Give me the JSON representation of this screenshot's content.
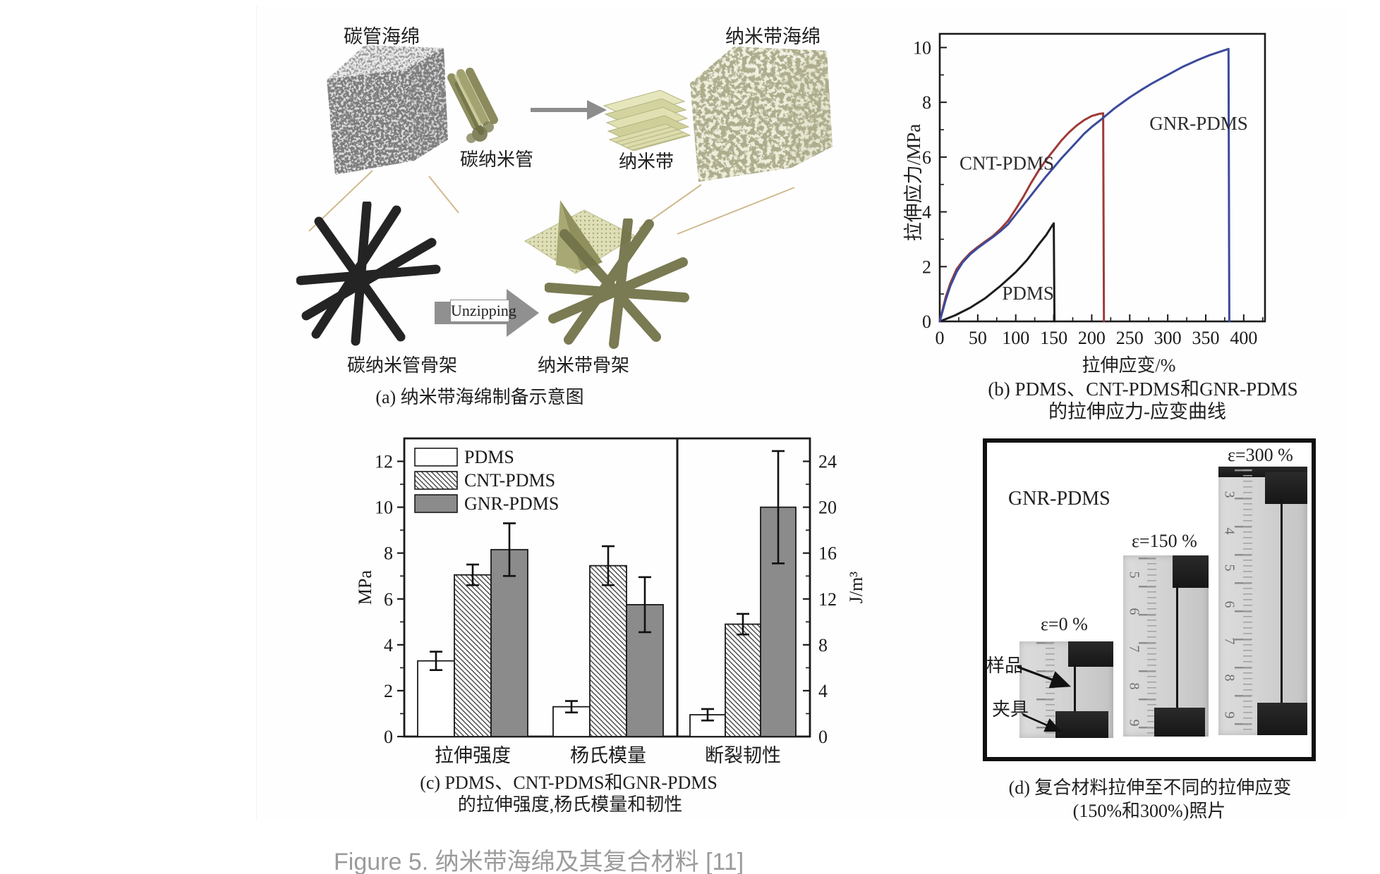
{
  "page": {
    "caption": "Figure 5. 纳米带海绵及其复合材料 [11]"
  },
  "panel_a": {
    "labels": {
      "cnt_sponge": "碳管海绵",
      "cnt": "碳纳米管",
      "nanoribbon": "纳米带",
      "gnr_sponge": "纳米带海绵",
      "unzipping": "Unzipping",
      "cnt_skeleton": "碳纳米管骨架",
      "gnr_skeleton": "纳米带骨架",
      "caption": "(a) 纳米带海绵制备示意图"
    }
  },
  "panel_b": {
    "caption_line1": "(b) PDMS、CNT-PDMS和GNR-PDMS",
    "caption_line2": "的拉伸应力-应变曲线"
  },
  "panel_c": {
    "caption_line1": "(c) PDMS、CNT-PDMS和GNR-PDMS",
    "caption_line2": "的拉伸强度,杨氏模量和韧性"
  },
  "panel_d": {
    "label": "GNR-PDMS",
    "sample_label": "样品",
    "clamp_label": "夹具",
    "caption_line1": "(d) 复合材料拉伸至不同的拉伸应变",
    "caption_line2": "(150%和300%)照片",
    "photos": [
      {
        "strain": "ε=0 %",
        "ruler_numbers": []
      },
      {
        "strain": "ε=150 %",
        "ruler_numbers": [
          "5",
          "6",
          "7",
          "8",
          "9"
        ]
      },
      {
        "strain": "ε=300 %",
        "ruler_numbers": [
          "3",
          "4",
          "5",
          "6",
          "7",
          "8",
          "9"
        ]
      }
    ]
  },
  "chart_data": [
    {
      "type": "line",
      "title": "拉伸应力-应变曲线",
      "xlabel": "拉伸应变/%",
      "ylabel": "拉伸应力/MPa",
      "xlim": [
        0,
        428
      ],
      "ylim": [
        0,
        10.5
      ],
      "xticks": [
        0,
        50,
        100,
        150,
        200,
        250,
        300,
        350,
        400
      ],
      "yticks": [
        0,
        2,
        4,
        6,
        8,
        10
      ],
      "grid": false,
      "series": [
        {
          "name": "PDMS",
          "color": "#1c1c1c",
          "points": [
            [
              0,
              0
            ],
            [
              20,
              0.22
            ],
            [
              40,
              0.5
            ],
            [
              60,
              0.85
            ],
            [
              80,
              1.3
            ],
            [
              100,
              1.8
            ],
            [
              115,
              2.25
            ],
            [
              130,
              2.8
            ],
            [
              140,
              3.15
            ],
            [
              148,
              3.5
            ],
            [
              150,
              3.58
            ],
            [
              151,
              0
            ]
          ]
        },
        {
          "name": "CNT-PDMS",
          "color": "#9e3b38",
          "points": [
            [
              0,
              0
            ],
            [
              4,
              0.45
            ],
            [
              8,
              0.9
            ],
            [
              14,
              1.4
            ],
            [
              22,
              1.9
            ],
            [
              30,
              2.2
            ],
            [
              40,
              2.5
            ],
            [
              50,
              2.72
            ],
            [
              60,
              2.92
            ],
            [
              70,
              3.12
            ],
            [
              80,
              3.38
            ],
            [
              90,
              3.68
            ],
            [
              100,
              4.1
            ],
            [
              110,
              4.55
            ],
            [
              120,
              5.05
            ],
            [
              130,
              5.5
            ],
            [
              140,
              5.9
            ],
            [
              150,
              6.25
            ],
            [
              160,
              6.6
            ],
            [
              170,
              6.9
            ],
            [
              180,
              7.15
            ],
            [
              190,
              7.35
            ],
            [
              200,
              7.5
            ],
            [
              210,
              7.58
            ],
            [
              215,
              7.6
            ],
            [
              216,
              0
            ]
          ]
        },
        {
          "name": "GNR-PDMS",
          "color": "#3b4a9c",
          "points": [
            [
              0,
              0
            ],
            [
              4,
              0.4
            ],
            [
              8,
              0.8
            ],
            [
              14,
              1.3
            ],
            [
              22,
              1.8
            ],
            [
              30,
              2.15
            ],
            [
              40,
              2.45
            ],
            [
              50,
              2.68
            ],
            [
              60,
              2.88
            ],
            [
              70,
              3.08
            ],
            [
              80,
              3.3
            ],
            [
              90,
              3.55
            ],
            [
              100,
              3.9
            ],
            [
              110,
              4.25
            ],
            [
              120,
              4.6
            ],
            [
              130,
              4.95
            ],
            [
              140,
              5.3
            ],
            [
              150,
              5.62
            ],
            [
              160,
              5.95
            ],
            [
              170,
              6.25
            ],
            [
              180,
              6.55
            ],
            [
              190,
              6.85
            ],
            [
              200,
              7.1
            ],
            [
              210,
              7.32
            ],
            [
              220,
              7.55
            ],
            [
              230,
              7.78
            ],
            [
              240,
              7.98
            ],
            [
              250,
              8.18
            ],
            [
              265,
              8.45
            ],
            [
              280,
              8.7
            ],
            [
              300,
              9.0
            ],
            [
              320,
              9.3
            ],
            [
              340,
              9.55
            ],
            [
              355,
              9.72
            ],
            [
              370,
              9.86
            ],
            [
              380,
              9.95
            ],
            [
              381,
              0
            ]
          ]
        }
      ],
      "labels_on_plot": [
        {
          "text": "CNT-PDMS",
          "x": 26,
          "y": 5.55
        },
        {
          "text": "GNR-PDMS",
          "x": 276,
          "y": 7.0
        },
        {
          "text": "PDMS",
          "x": 82,
          "y": 0.8
        }
      ]
    },
    {
      "type": "bar",
      "title": "拉伸强度、杨氏模量和韧性对比",
      "legend": [
        "PDMS",
        "CNT-PDMS",
        "GNR-PDMS"
      ],
      "series_fills": [
        "#ffffff",
        "hatch",
        "#8b8b8b"
      ],
      "left_axis": {
        "label": "MPa",
        "ticks": [
          0,
          2,
          4,
          6,
          8,
          10,
          12
        ],
        "max": 13.0
      },
      "right_axis": {
        "label": "J/m³",
        "ticks": [
          0,
          4,
          8,
          12,
          16,
          20,
          24
        ],
        "max": 26.0
      },
      "groups": [
        {
          "label": "拉伸强度",
          "axis": "left",
          "values": [
            3.3,
            7.05,
            8.15
          ],
          "errors": [
            0.4,
            0.45,
            1.15
          ]
        },
        {
          "label": "杨氏模量",
          "axis": "left",
          "values": [
            1.3,
            7.45,
            5.75
          ],
          "errors": [
            0.25,
            0.85,
            1.2
          ]
        },
        {
          "label": "断裂韧性",
          "axis": "right",
          "values": [
            1.9,
            9.8,
            20.0
          ],
          "errors": [
            0.5,
            0.9,
            4.9
          ]
        }
      ]
    }
  ]
}
